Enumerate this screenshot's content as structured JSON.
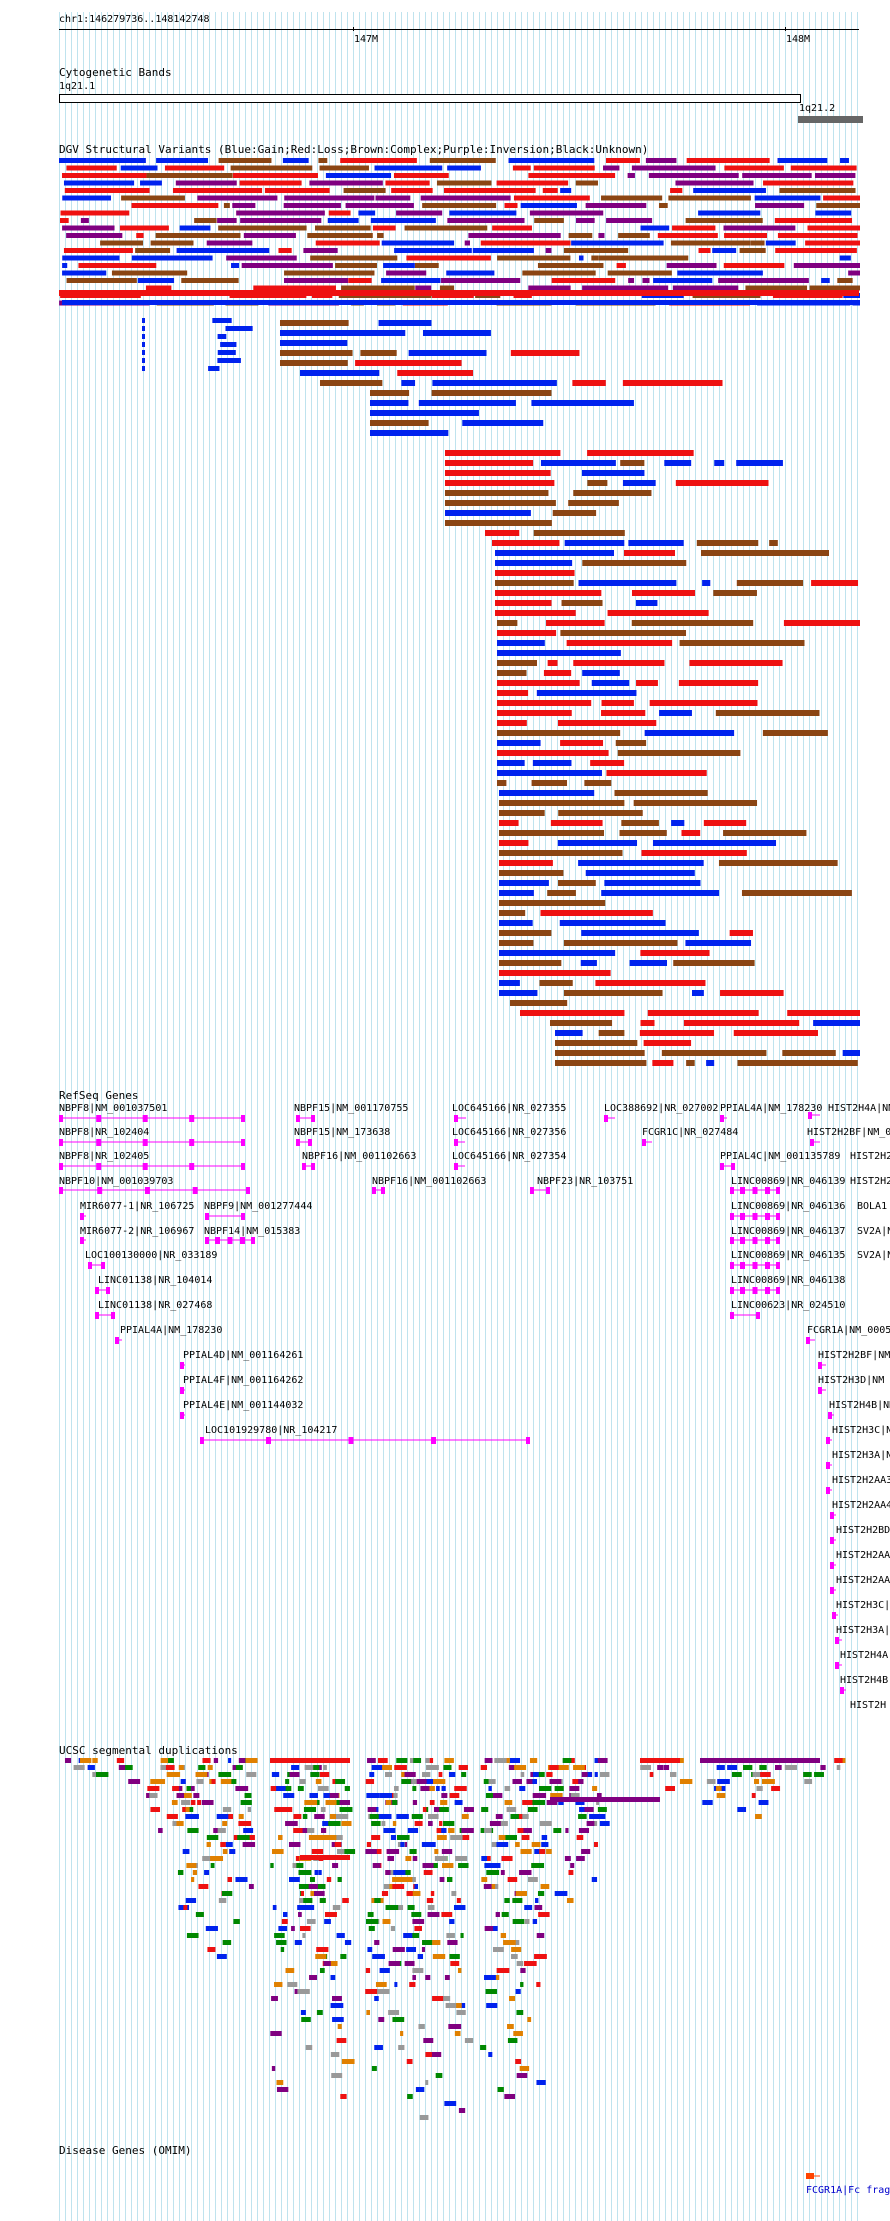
{
  "ruler": {
    "position": "chr1:146279736..148142748",
    "ticks": [
      {
        "label": "147M",
        "frac": 0.36
      },
      {
        "label": "148M",
        "frac": 0.9
      }
    ]
  },
  "cyto": {
    "title": "Cytogenetic Bands",
    "band1": "1q21.1",
    "band2": "1q21.2"
  },
  "dgv": {
    "title": "DGV Structural Variants (Blue:Gain;Red:Loss;Brown:Complex;Purple:Inversion;Black:Unknown)"
  },
  "refseq": {
    "title": "RefSeq Genes",
    "genes": [
      "NBPF8|NM_001037501",
      "NBPF8|NR_102404",
      "NBPF8|NR_102405",
      "NBPF10|NM_001039703",
      "MIR6077-1|NR_106725",
      "NBPF9|NM_001277444",
      "MIR6077-2|NR_106967",
      "NBPF14|NM_015383",
      "LOC100130000|NR_033189",
      "LINC01138|NR_104014",
      "LINC01138|NR_027468",
      "PPIAL4A|NM_178230",
      "PPIAL4D|NM_001164261",
      "PPIAL4F|NM_001164262",
      "PPIAL4E|NM_001144032",
      "LOC101929780|NR_104217",
      "NBPF15|NM_001170755",
      "NBPF15|NM_173638",
      "NBPF16|NM_001102663",
      "NBPF16|NM_001102663",
      "LOC645166|NR_027355",
      "LOC645166|NR_027356",
      "LOC645166|NR_027354",
      "NBPF23|NR_103751",
      "LOC388692|NR_027002",
      "FCGR1C|NR_027484",
      "PPIAL4A|NM_178230",
      "PPIAL4C|NM_001135789",
      "LINC00869|NR_046139",
      "LINC00869|NR_046136",
      "LINC00869|NR_046137",
      "LINC00869|NR_046135",
      "LINC00869|NR_046138",
      "LINC00623|NR_024510",
      "HIST2H4A|NM",
      "HIST2H2BF|NM_0",
      "HIST2H2",
      "HIST2H2",
      "BOLA1",
      "SV2A|N",
      "SV2A|N",
      "FCGR1A|NM_0005",
      "HIST2H2BF|NM",
      "HIST2H3D|NM",
      "HIST2H4B|NM",
      "HIST2H3C|NM",
      "HIST2H3A|NM",
      "HIST2H2AA3",
      "HIST2H2AA4",
      "HIST2H2BD",
      "HIST2H2AA",
      "HIST2H2AA",
      "HIST2H3C|",
      "HIST2H3A|",
      "HIST2H4A",
      "HIST2H4B",
      "HIST2H"
    ]
  },
  "segdup": {
    "title": "UCSC segmental duplications"
  },
  "omim": {
    "title": "Disease Genes (OMIM)",
    "item": "FCGR1A|Fc frag"
  },
  "colors": {
    "gain": "#0022ee",
    "loss": "#ee1111",
    "complex": "#8b4513",
    "inversion": "#800080",
    "gene": "#ff00ff",
    "segdup_green": "#008800",
    "grid": "#bfe3ee"
  }
}
